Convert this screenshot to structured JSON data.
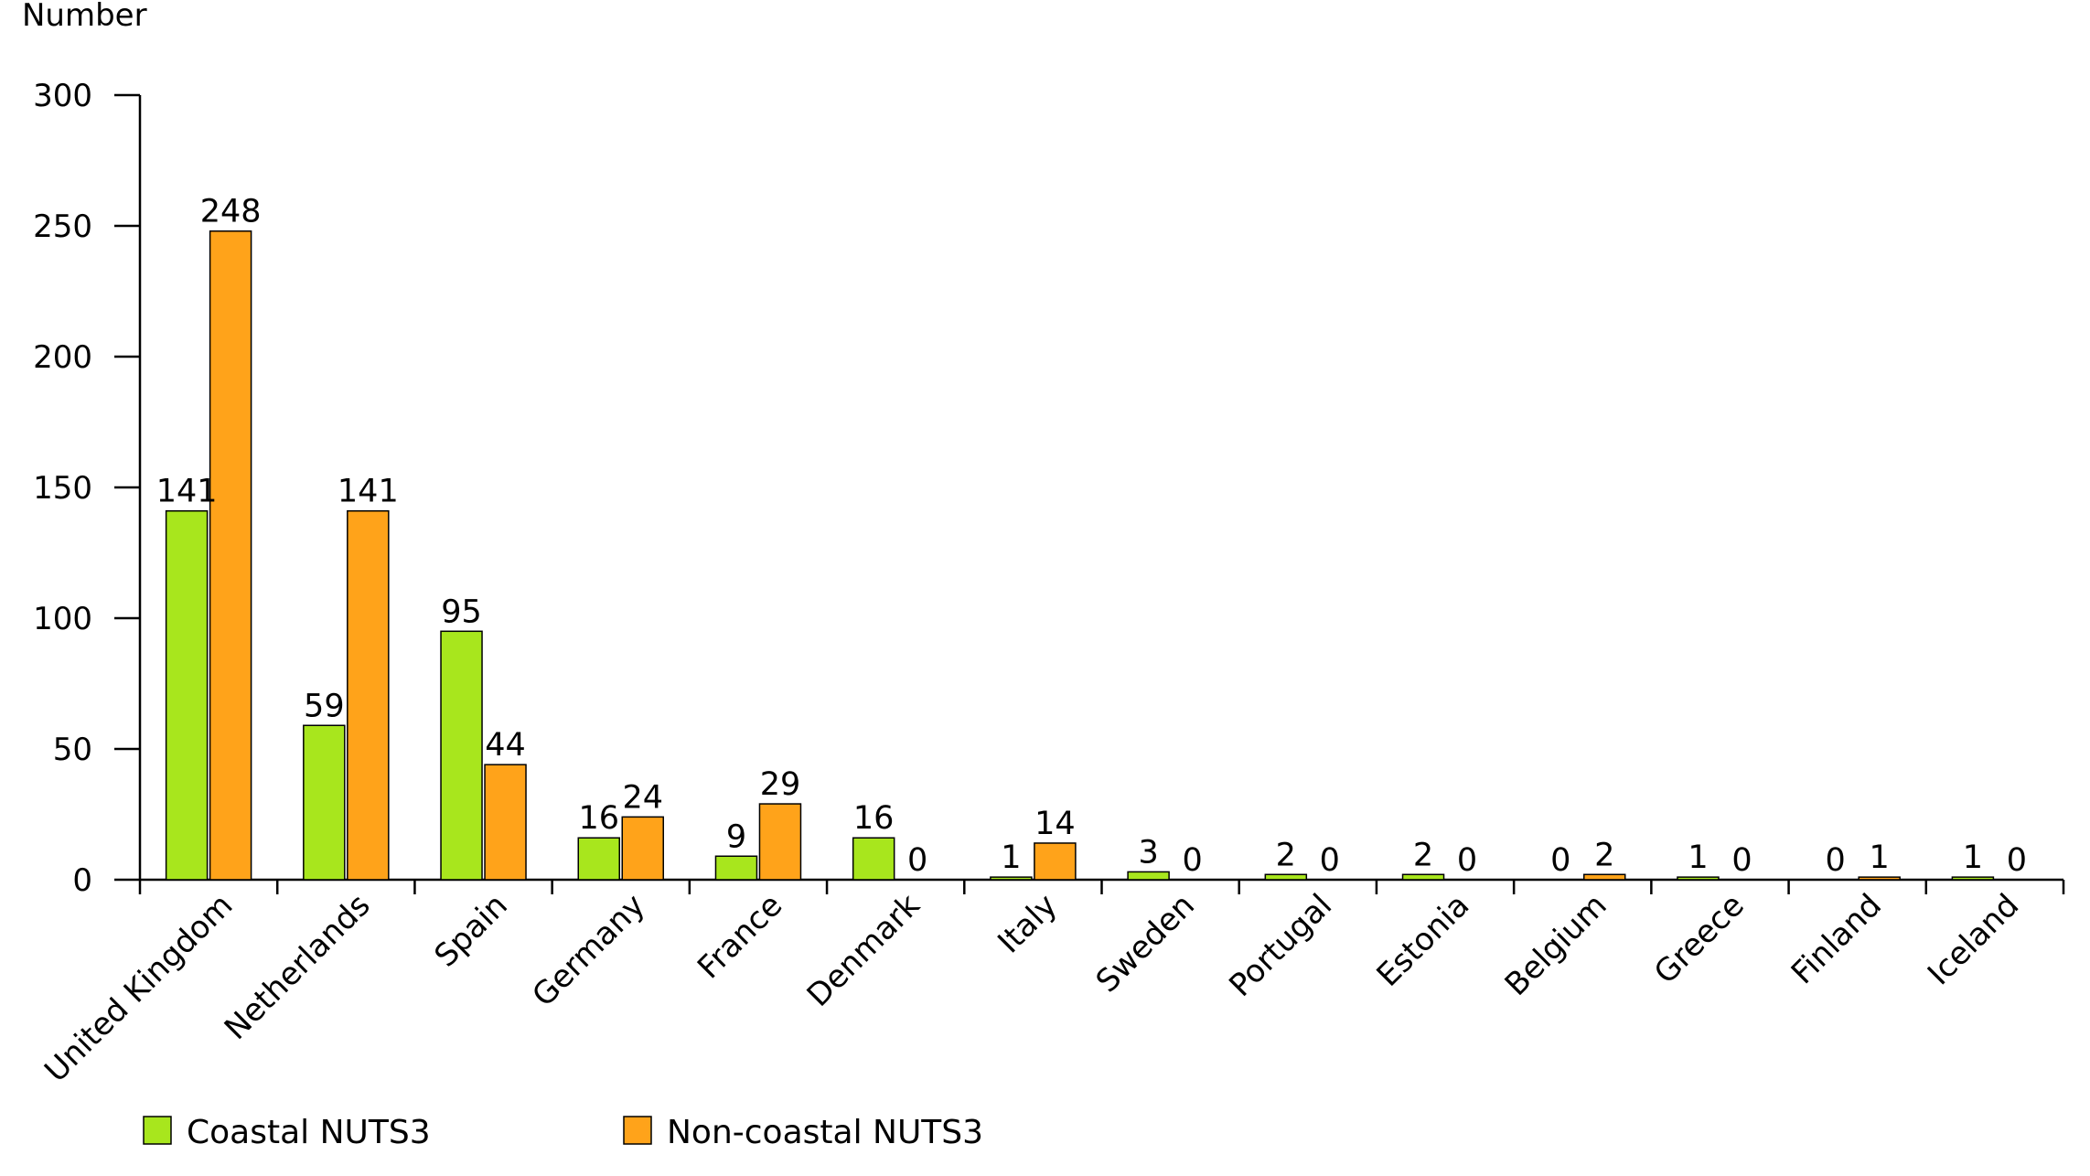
{
  "chart_data": {
    "type": "bar",
    "ylabel": "Number",
    "xlabel": "",
    "ylim": [
      0,
      300
    ],
    "yticks": [
      0,
      50,
      100,
      150,
      200,
      250,
      300
    ],
    "categories": [
      "United Kingdom",
      "Netherlands",
      "Spain",
      "Germany",
      "France",
      "Denmark",
      "Italy",
      "Sweden",
      "Portugal",
      "Estonia",
      "Belgium",
      "Greece",
      "Finland",
      "Iceland"
    ],
    "series": [
      {
        "name": "Coastal NUTS3",
        "color": "#a8e61d",
        "values": [
          141,
          59,
          95,
          16,
          9,
          16,
          1,
          3,
          2,
          2,
          0,
          1,
          0,
          1
        ]
      },
      {
        "name": "Non-coastal NUTS3",
        "color": "#ffa31a",
        "values": [
          248,
          141,
          44,
          24,
          29,
          0,
          14,
          0,
          0,
          0,
          2,
          0,
          1,
          0
        ]
      }
    ],
    "legend_position": "bottom-left",
    "grid": false
  }
}
